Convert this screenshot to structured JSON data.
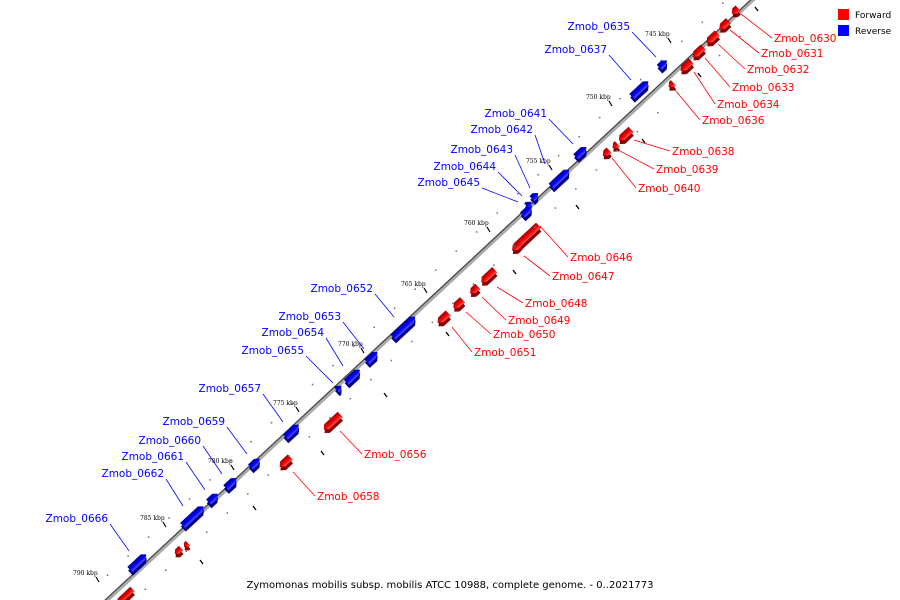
{
  "caption": "Zymomonas mobilis subsp. mobilis ATCC 10988, complete genome. - 0..2021773",
  "legend": [
    {
      "label": "Forward",
      "color": "#ff0000"
    },
    {
      "label": "Reverse",
      "color": "#0000ff"
    }
  ],
  "ticks": [
    "745 kbp",
    "750 kbp",
    "755 kbp",
    "760 kbp",
    "765 kbp",
    "770 kbp",
    "775 kbp",
    "780 kbp",
    "785 kbp",
    "790 kbp"
  ],
  "genes": [
    {
      "name": "Zmob_0630",
      "strand": "forward"
    },
    {
      "name": "Zmob_0631",
      "strand": "forward"
    },
    {
      "name": "Zmob_0632",
      "strand": "forward"
    },
    {
      "name": "Zmob_0633",
      "strand": "forward"
    },
    {
      "name": "Zmob_0634",
      "strand": "forward"
    },
    {
      "name": "Zmob_0635",
      "strand": "reverse"
    },
    {
      "name": "Zmob_0636",
      "strand": "forward"
    },
    {
      "name": "Zmob_0637",
      "strand": "reverse"
    },
    {
      "name": "Zmob_0638",
      "strand": "forward"
    },
    {
      "name": "Zmob_0639",
      "strand": "forward"
    },
    {
      "name": "Zmob_0640",
      "strand": "forward"
    },
    {
      "name": "Zmob_0641",
      "strand": "reverse"
    },
    {
      "name": "Zmob_0642",
      "strand": "reverse"
    },
    {
      "name": "Zmob_0643",
      "strand": "reverse"
    },
    {
      "name": "Zmob_0644",
      "strand": "reverse"
    },
    {
      "name": "Zmob_0645",
      "strand": "reverse"
    },
    {
      "name": "Zmob_0646",
      "strand": "forward"
    },
    {
      "name": "Zmob_0647",
      "strand": "forward"
    },
    {
      "name": "Zmob_0648",
      "strand": "forward"
    },
    {
      "name": "Zmob_0649",
      "strand": "forward"
    },
    {
      "name": "Zmob_0650",
      "strand": "forward"
    },
    {
      "name": "Zmob_0651",
      "strand": "forward"
    },
    {
      "name": "Zmob_0652",
      "strand": "reverse"
    },
    {
      "name": "Zmob_0653",
      "strand": "reverse"
    },
    {
      "name": "Zmob_0654",
      "strand": "reverse"
    },
    {
      "name": "Zmob_0655",
      "strand": "reverse"
    },
    {
      "name": "Zmob_0656",
      "strand": "forward"
    },
    {
      "name": "Zmob_0657",
      "strand": "reverse"
    },
    {
      "name": "Zmob_0658",
      "strand": "forward"
    },
    {
      "name": "Zmob_0659",
      "strand": "reverse"
    },
    {
      "name": "Zmob_0660",
      "strand": "reverse"
    },
    {
      "name": "Zmob_0661",
      "strand": "reverse"
    },
    {
      "name": "Zmob_0662",
      "strand": "reverse"
    },
    {
      "name": "Zmob_0666",
      "strand": "reverse"
    }
  ]
}
